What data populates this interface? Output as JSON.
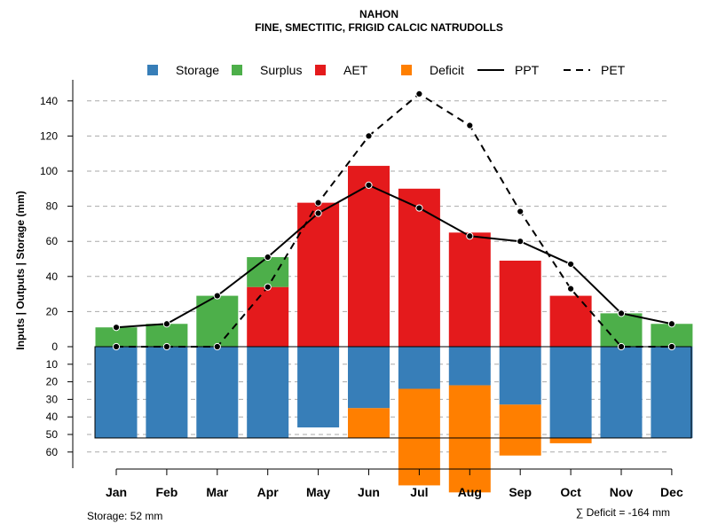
{
  "chart_data": {
    "type": "bar",
    "title": "NAHON",
    "subtitle": "FINE, SMECTITIC, FRIGID CALCIC NATRUDOLLS",
    "ylabel": "Inputs | Outputs | Storage    (mm)",
    "ylim": [
      -60,
      150
    ],
    "yticks": [
      {
        "value": 140,
        "label": "140"
      },
      {
        "value": 120,
        "label": "120"
      },
      {
        "value": 100,
        "label": "100"
      },
      {
        "value": 80,
        "label": "80"
      },
      {
        "value": 60,
        "label": "60"
      },
      {
        "value": 40,
        "label": "40"
      },
      {
        "value": 20,
        "label": "20"
      },
      {
        "value": 0,
        "label": "0"
      },
      {
        "value": -10,
        "label": "10"
      },
      {
        "value": -20,
        "label": "20"
      },
      {
        "value": -30,
        "label": "30"
      },
      {
        "value": -40,
        "label": "40"
      },
      {
        "value": -50,
        "label": "50"
      },
      {
        "value": -60,
        "label": "60"
      }
    ],
    "categories": [
      "Jan",
      "Feb",
      "Mar",
      "Apr",
      "May",
      "Jun",
      "Jul",
      "Aug",
      "Sep",
      "Oct",
      "Nov",
      "Dec"
    ],
    "series": [
      {
        "name": "Storage",
        "color": "#377EB8",
        "values": [
          52,
          52,
          52,
          52,
          46,
          35,
          24,
          22,
          33,
          52,
          52,
          52
        ]
      },
      {
        "name": "Surplus",
        "color": "#4DAF4A",
        "values": [
          11,
          13,
          29,
          17,
          0,
          0,
          0,
          0,
          0,
          0,
          19,
          13
        ]
      },
      {
        "name": "AET",
        "color": "#E41A1C",
        "values": [
          0,
          0,
          0,
          34,
          82,
          103,
          90,
          65,
          49,
          29,
          0,
          0
        ]
      },
      {
        "name": "Deficit",
        "color": "#FF7F00",
        "values": [
          0,
          0,
          0,
          0,
          0,
          17,
          55,
          61,
          29,
          3,
          0,
          0
        ]
      },
      {
        "name": "PPT",
        "style": "solid",
        "color": "#000000",
        "values": [
          11,
          13,
          29,
          51,
          76,
          92,
          79,
          63,
          60,
          47,
          19,
          13
        ]
      },
      {
        "name": "PET",
        "style": "dashed",
        "color": "#000000",
        "values": [
          0,
          0,
          0,
          34,
          82,
          120,
          144,
          126,
          77,
          33,
          0,
          0
        ]
      }
    ],
    "legend": {
      "position": "top",
      "entries": [
        {
          "label": "Storage",
          "kind": "box",
          "color": "#377EB8"
        },
        {
          "label": "Surplus",
          "kind": "box",
          "color": "#4DAF4A"
        },
        {
          "label": "AET",
          "kind": "box",
          "color": "#E41A1C"
        },
        {
          "label": "Deficit",
          "kind": "box",
          "color": "#FF7F00"
        },
        {
          "label": "PPT",
          "kind": "solid-line",
          "color": "#000000"
        },
        {
          "label": "PET",
          "kind": "dashed-line",
          "color": "#000000"
        }
      ]
    },
    "annotations": {
      "storage_note": "Storage: 52 mm",
      "deficit_note": "∑ Deficit = -164 mm"
    }
  }
}
